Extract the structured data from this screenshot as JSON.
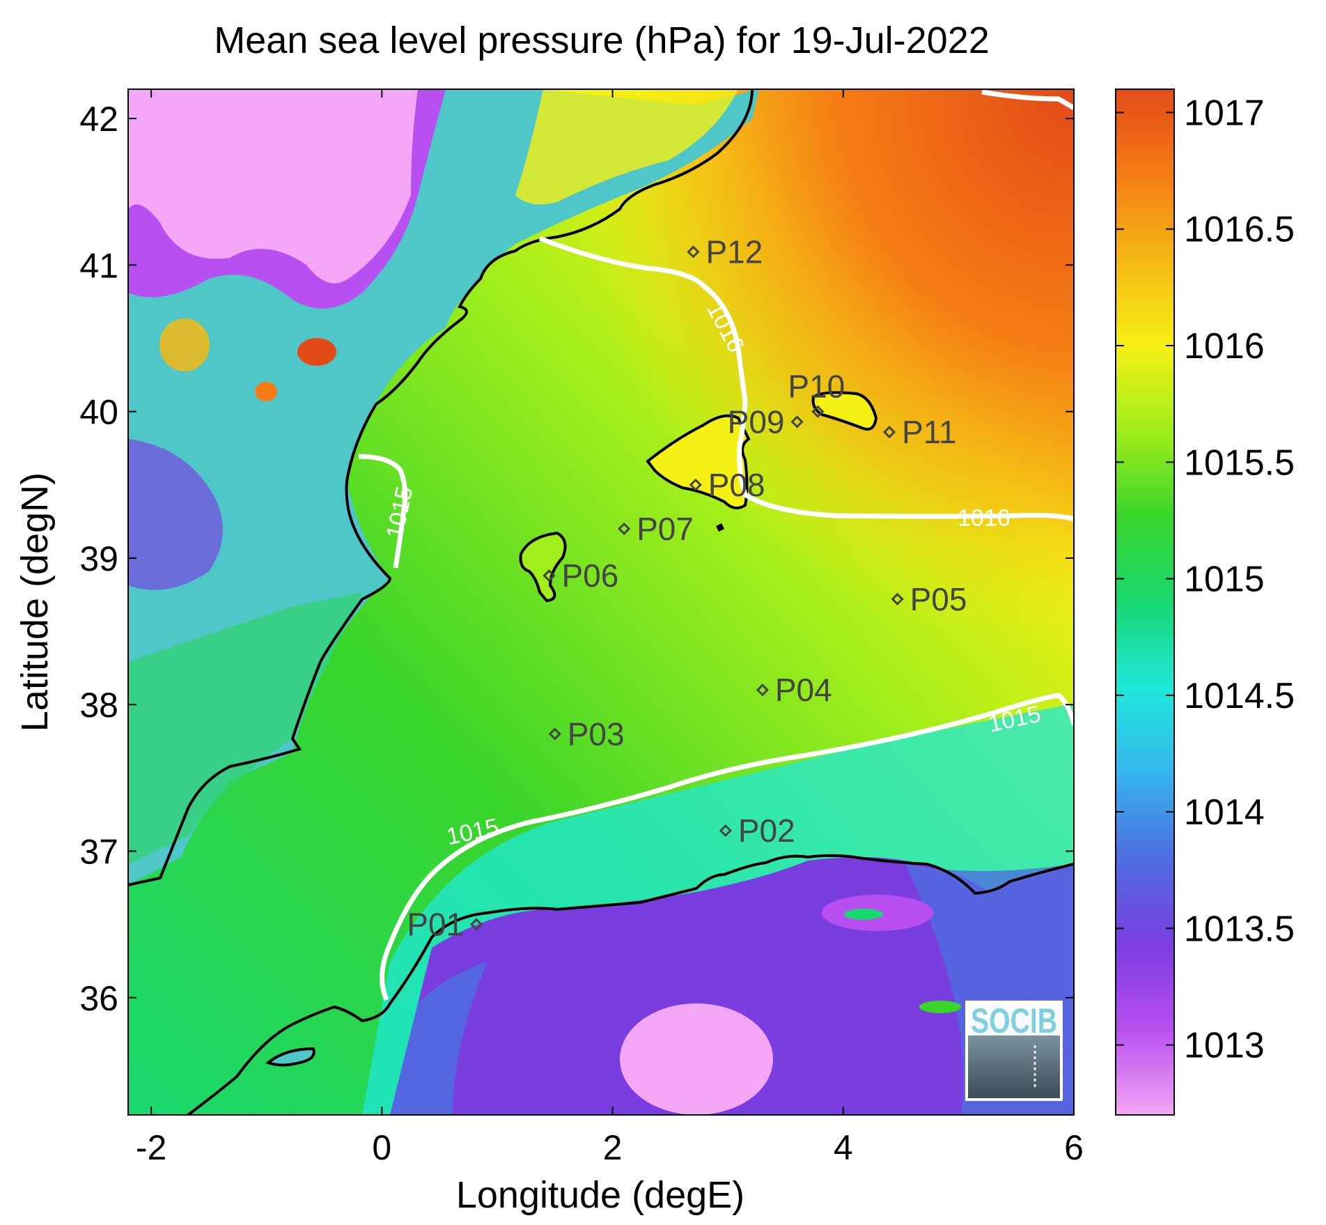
{
  "title": "Mean sea level pressure (hPa) for 19-Jul-2022",
  "xlabel": "Longitude (degE)",
  "ylabel": "Latitude (degN)",
  "x_range": [
    -2.2,
    6.0
  ],
  "y_range": [
    35.2,
    42.2
  ],
  "x_ticks": [
    -2,
    0,
    2,
    4,
    6
  ],
  "x_tick_labels": [
    "-2",
    "0",
    "2",
    "4",
    "6"
  ],
  "y_ticks": [
    36,
    37,
    38,
    39,
    40,
    41,
    42
  ],
  "y_tick_labels": [
    "36",
    "37",
    "38",
    "39",
    "40",
    "41",
    "42"
  ],
  "colorbar": {
    "range": [
      1012.7,
      1017.1
    ],
    "ticks": [
      1013,
      1013.5,
      1014,
      1014.5,
      1015,
      1015.5,
      1016,
      1016.5,
      1017
    ],
    "tick_labels": [
      "1013",
      "1013.5",
      "1014",
      "1014.5",
      "1015",
      "1015.5",
      "1016",
      "1016.5",
      "1017"
    ],
    "colors": [
      "#f3a6f5",
      "#b84ff0",
      "#7a3de0",
      "#4e6ee0",
      "#35b5ee",
      "#1fe8d8",
      "#18d870",
      "#3ad52a",
      "#a0ee1a",
      "#f5f014",
      "#f5b814",
      "#f57c14",
      "#e24a18"
    ]
  },
  "stations": [
    {
      "id": "P01",
      "lon": 0.82,
      "lat": 36.5
    },
    {
      "id": "P02",
      "lon": 2.98,
      "lat": 37.14
    },
    {
      "id": "P03",
      "lon": 1.5,
      "lat": 37.8
    },
    {
      "id": "P04",
      "lon": 3.3,
      "lat": 38.1
    },
    {
      "id": "P05",
      "lon": 4.47,
      "lat": 38.72
    },
    {
      "id": "P06",
      "lon": 1.45,
      "lat": 38.88
    },
    {
      "id": "P07",
      "lon": 2.1,
      "lat": 39.2
    },
    {
      "id": "P08",
      "lon": 2.72,
      "lat": 39.5
    },
    {
      "id": "P09",
      "lon": 3.6,
      "lat": 39.93
    },
    {
      "id": "P10",
      "lon": 3.78,
      "lat": 40.0
    },
    {
      "id": "P11",
      "lon": 4.4,
      "lat": 39.86
    },
    {
      "id": "P12",
      "lon": 2.7,
      "lat": 41.09
    }
  ],
  "contour_labels": [
    {
      "text": "1016",
      "lon": 2.92,
      "lat": 40.55,
      "angle": 62
    },
    {
      "text": "1016",
      "lon": 5.22,
      "lat": 39.22,
      "angle": 0
    },
    {
      "text": "1015",
      "lon": 0.22,
      "lat": 39.3,
      "angle": -78
    },
    {
      "text": "1015",
      "lon": 5.5,
      "lat": 37.85,
      "angle": -12
    },
    {
      "text": "1015",
      "lon": 0.8,
      "lat": 37.08,
      "angle": -12
    }
  ],
  "logo": {
    "text": "SOCIB"
  }
}
